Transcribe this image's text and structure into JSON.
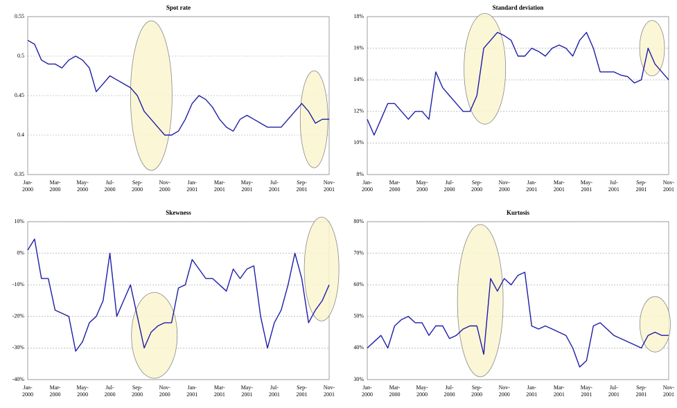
{
  "chart_data": [
    {
      "type": "line",
      "title": "Spot rate",
      "categories": [
        "Jan-\n2000",
        null,
        null,
        null,
        "Mar-\n2000",
        null,
        null,
        null,
        "May-\n2000",
        null,
        null,
        null,
        "Jul-\n2000",
        null,
        null,
        null,
        "Sep-\n2000",
        null,
        null,
        null,
        "Nov-\n2000",
        null,
        null,
        null,
        "Jan-\n2001",
        null,
        null,
        null,
        "Mar-\n2001",
        null,
        null,
        null,
        "May-\n2001",
        null,
        null,
        null,
        "Jul-\n2001",
        null,
        null,
        null,
        "Sep-\n2001",
        null,
        null,
        null,
        "Nov-\n2001"
      ],
      "values": [
        0.52,
        0.515,
        0.495,
        0.49,
        0.49,
        0.485,
        0.495,
        0.5,
        0.495,
        0.485,
        0.455,
        0.465,
        0.475,
        0.47,
        0.465,
        0.46,
        0.45,
        0.43,
        0.42,
        0.41,
        0.4,
        0.4,
        0.405,
        0.42,
        0.44,
        0.45,
        0.445,
        0.435,
        0.42,
        0.41,
        0.405,
        0.42,
        0.425,
        0.42,
        0.415,
        0.41,
        0.41,
        0.41,
        0.42,
        0.43,
        0.44,
        0.43,
        0.415,
        0.42,
        0.42
      ],
      "color": "#1c1ca6",
      "ylim": [
        0.35,
        0.55
      ],
      "yticks": [
        0.35,
        0.4,
        0.45,
        0.5,
        0.55
      ],
      "grid": true
    },
    {
      "type": "line",
      "title": "Standard deviation",
      "categories": [
        "Jan-\n2000",
        null,
        null,
        null,
        "Mar-\n2000",
        null,
        null,
        null,
        "May-\n2000",
        null,
        null,
        null,
        "Jul-\n2000",
        null,
        null,
        null,
        "Sep-\n2000",
        null,
        null,
        null,
        "Nov-\n2000",
        null,
        null,
        null,
        "Jan-\n2001",
        null,
        null,
        null,
        "Mar-\n2001",
        null,
        null,
        null,
        "May-\n2001",
        null,
        null,
        null,
        "Jul-\n2001",
        null,
        null,
        null,
        "Sep-\n2001",
        null,
        null,
        null,
        "Nov-\n2001"
      ],
      "values": [
        11.5,
        10.5,
        11.5,
        12.5,
        12.5,
        12,
        11.5,
        12,
        12,
        11.5,
        14.5,
        13.5,
        13,
        12.5,
        12,
        12,
        13,
        16,
        16.5,
        17,
        16.8,
        16.5,
        15.5,
        15.5,
        16,
        15.8,
        15.5,
        16,
        16.2,
        16,
        15.5,
        16.5,
        17,
        16,
        14.5,
        14.5,
        14.5,
        14.3,
        14.2,
        13.8,
        14,
        16,
        15,
        14.5,
        14
      ],
      "color": "#1c1ca6",
      "ylim": [
        8,
        18
      ],
      "yticks": [
        {
          "value": 8,
          "label": "8%"
        },
        {
          "value": 10,
          "label": "10%"
        },
        {
          "value": 12,
          "label": "12%"
        },
        {
          "value": 14,
          "label": "14%"
        },
        {
          "value": 16,
          "label": "16%"
        },
        {
          "value": 18,
          "label": "18%"
        }
      ],
      "grid": true
    },
    {
      "type": "line",
      "title": "Skewness",
      "categories": [
        "Jan-\n2000",
        null,
        null,
        null,
        "Mar-\n2000",
        null,
        null,
        null,
        "May-\n2000",
        null,
        null,
        null,
        "Jul-\n2000",
        null,
        null,
        null,
        "Sep-\n2000",
        null,
        null,
        null,
        "Nov-\n2000",
        null,
        null,
        null,
        "Jan-\n2001",
        null,
        null,
        null,
        "Mar-\n2001",
        null,
        null,
        null,
        "May-\n2001",
        null,
        null,
        null,
        "Jul-\n2001",
        null,
        null,
        null,
        "Sep-\n2001",
        null,
        null,
        null,
        "Nov-\n2001"
      ],
      "values": [
        1,
        4.5,
        -8,
        -8,
        -18,
        -19,
        -20,
        -31,
        -28,
        -22,
        -20,
        -15,
        0,
        -20,
        -15,
        -10,
        -20,
        -30,
        -25,
        -23,
        -22,
        -22,
        -11,
        -10,
        -2,
        -5,
        -8,
        -8,
        -10,
        -12,
        -5,
        -8,
        -5,
        -4,
        -20,
        -30,
        -22,
        -18,
        -10,
        0,
        -8,
        -22,
        -18,
        -15,
        -10
      ],
      "color": "#1c1ca6",
      "ylim": [
        -40,
        10
      ],
      "yticks": [
        {
          "value": -40,
          "label": "-40%"
        },
        {
          "value": -30,
          "label": "-30%"
        },
        {
          "value": -20,
          "label": "-20%"
        },
        {
          "value": -10,
          "label": "-10%"
        },
        {
          "value": 0,
          "label": "0%"
        },
        {
          "value": 10,
          "label": "10%"
        }
      ],
      "grid": true
    },
    {
      "type": "line",
      "title": "Kurtosis",
      "categories": [
        "Jan-\n2000",
        null,
        null,
        null,
        "Mar-\n2000",
        null,
        null,
        null,
        "May-\n2000",
        null,
        null,
        null,
        "Jul-\n2000",
        null,
        null,
        null,
        "Sep-\n2000",
        null,
        null,
        null,
        "Nov-\n2000",
        null,
        null,
        null,
        "Jan-\n2001",
        null,
        null,
        null,
        "Mar-\n2001",
        null,
        null,
        null,
        "May-\n2001",
        null,
        null,
        null,
        "Jul-\n2001",
        null,
        null,
        null,
        "Sep-\n2001",
        null,
        null,
        null,
        "Nov-\n2001"
      ],
      "values": [
        40,
        42,
        44,
        40,
        47,
        49,
        50,
        48,
        48,
        44,
        47,
        47,
        43,
        44,
        46,
        47,
        47,
        38,
        62,
        58,
        62,
        60,
        63,
        64,
        47,
        46,
        47,
        46,
        45,
        44,
        40,
        34,
        36,
        47,
        48,
        46,
        44,
        43,
        42,
        41,
        40,
        44,
        45,
        44,
        44
      ],
      "color": "#1c1ca6",
      "ylim": [
        30,
        80
      ],
      "yticks": [
        {
          "value": 30,
          "label": "30%"
        },
        {
          "value": 40,
          "label": "40%"
        },
        {
          "value": 50,
          "label": "50%"
        },
        {
          "value": 60,
          "label": "60%"
        },
        {
          "value": 70,
          "label": "70%"
        },
        {
          "value": 80,
          "label": "80%"
        }
      ],
      "grid": true
    }
  ]
}
